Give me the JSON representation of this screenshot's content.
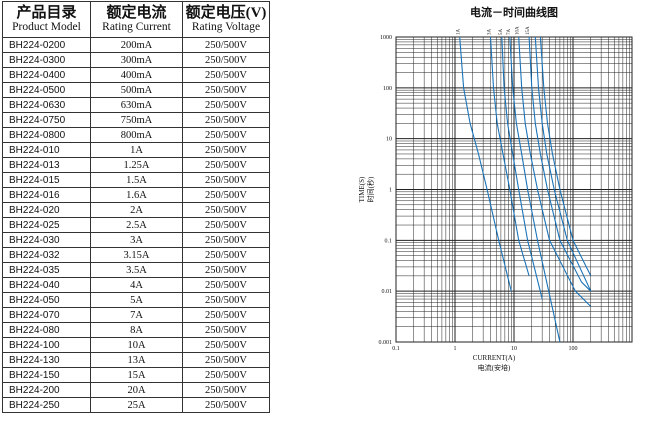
{
  "table": {
    "headers": [
      {
        "zh": "产品目录",
        "en": "Product Model"
      },
      {
        "zh": "额定电流",
        "en": "Rating Current"
      },
      {
        "zh": "额定电压(V)",
        "en": "Rating Voltage"
      }
    ],
    "rows": [
      [
        "BH224-0200",
        "200mA",
        "250/500V"
      ],
      [
        "BH224-0300",
        "300mA",
        "250/500V"
      ],
      [
        "BH224-0400",
        "400mA",
        "250/500V"
      ],
      [
        "BH224-0500",
        "500mA",
        "250/500V"
      ],
      [
        "BH224-0630",
        "630mA",
        "250/500V"
      ],
      [
        "BH224-0750",
        "750mA",
        "250/500V"
      ],
      [
        "BH224-0800",
        "800mA",
        "250/500V"
      ],
      [
        "BH224-010",
        "1A",
        "250/500V"
      ],
      [
        "BH224-013",
        "1.25A",
        "250/500V"
      ],
      [
        "BH224-015",
        "1.5A",
        "250/500V"
      ],
      [
        "BH224-016",
        "1.6A",
        "250/500V"
      ],
      [
        "BH224-020",
        "2A",
        "250/500V"
      ],
      [
        "BH224-025",
        "2.5A",
        "250/500V"
      ],
      [
        "BH224-030",
        "3A",
        "250/500V"
      ],
      [
        "BH224-032",
        "3.15A",
        "250/500V"
      ],
      [
        "BH224-035",
        "3.5A",
        "250/500V"
      ],
      [
        "BH224-040",
        "4A",
        "250/500V"
      ],
      [
        "BH224-050",
        "5A",
        "250/500V"
      ],
      [
        "BH224-070",
        "7A",
        "250/500V"
      ],
      [
        "BH224-080",
        "8A",
        "250/500V"
      ],
      [
        "BH224-100",
        "10A",
        "250/500V"
      ],
      [
        "BH224-130",
        "13A",
        "250/500V"
      ],
      [
        "BH224-150",
        "15A",
        "250/500V"
      ],
      [
        "BH224-200",
        "20A",
        "250/500V"
      ],
      [
        "BH224-250",
        "25A",
        "250/500V"
      ]
    ]
  },
  "chart_data": {
    "type": "line",
    "title": "电流－时间曲线图",
    "xlabel": "CURRENT(A)",
    "xlabel_zh": "电流(安培)",
    "ylabel": "TIME(S)",
    "ylabel_zh": "时间(秒)",
    "x_scale": "log",
    "y_scale": "log",
    "xlim": [
      0.1,
      1000
    ],
    "ylim": [
      0.001,
      1000
    ],
    "x_ticks": [
      "0.1",
      "1",
      "10",
      "100"
    ],
    "y_ticks": [
      "1000",
      "100",
      "10",
      "1",
      "0.1",
      "0.01",
      "0.001"
    ],
    "grid": true,
    "line_color": "#1a73b8",
    "series": [
      {
        "name": "1A",
        "x": [
          1.2,
          1.4,
          1.8,
          2.5,
          3.5,
          5.5,
          9
        ],
        "y": [
          1000,
          100,
          20,
          5,
          1,
          0.1,
          0.01
        ]
      },
      {
        "name": "3A",
        "x": [
          4,
          4.5,
          5.2,
          6.5,
          8.5,
          12,
          18
        ],
        "y": [
          1000,
          100,
          20,
          5,
          1,
          0.1,
          0.02
        ]
      },
      {
        "name": "5A",
        "x": [
          6.2,
          6.8,
          7.8,
          9.5,
          12,
          17,
          30
        ],
        "y": [
          1000,
          100,
          20,
          5,
          1,
          0.1,
          0.007
        ]
      },
      {
        "name": "7A",
        "x": [
          8.5,
          9.5,
          11,
          13.5,
          17,
          25,
          60
        ],
        "y": [
          1000,
          100,
          20,
          5,
          1,
          0.1,
          0.001
        ]
      },
      {
        "name": "10A",
        "x": [
          12,
          13.5,
          15.5,
          19,
          25,
          40,
          110,
          200
        ],
        "y": [
          1000,
          100,
          20,
          5,
          1,
          0.1,
          0.01,
          0.005
        ]
      },
      {
        "name": "15A",
        "x": [
          18,
          20,
          23,
          28,
          37,
          60,
          140,
          200
        ],
        "y": [
          1000,
          100,
          20,
          5,
          1,
          0.1,
          0.015,
          0.01
        ]
      },
      {
        "name": "",
        "x": [
          23,
          26,
          30,
          36,
          48,
          80,
          200
        ],
        "y": [
          1000,
          100,
          20,
          5,
          1,
          0.1,
          0.01
        ]
      },
      {
        "name": "",
        "x": [
          28,
          32,
          37,
          45,
          60,
          100,
          200
        ],
        "y": [
          1000,
          100,
          20,
          5,
          1,
          0.1,
          0.02
        ]
      }
    ]
  }
}
